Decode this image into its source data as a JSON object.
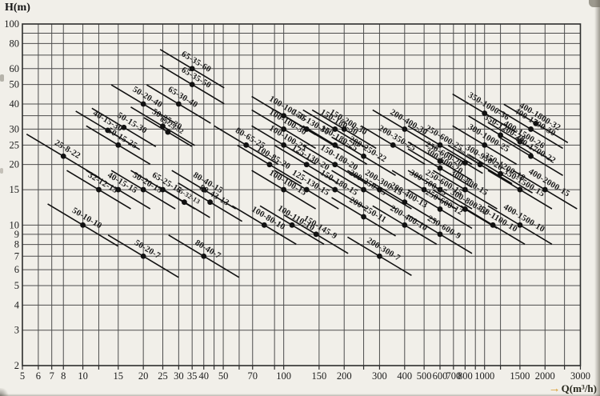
{
  "colors": {
    "background": "#f1efe9",
    "ink": "#1c1c1c",
    "grid": "#4d4d4d",
    "border": "#2d2d2d",
    "curve": "#111111",
    "arrow_accent": "#d99d33"
  },
  "chart_data": {
    "type": "scatter",
    "xlabel": "Q(m³/h)",
    "ylabel": "H(m)",
    "x_scale": "log",
    "y_scale": "log",
    "xlim": [
      5,
      3000
    ],
    "ylim": [
      2,
      100
    ],
    "grid": true,
    "legend": "none",
    "x_gridlines": [
      5,
      6,
      7,
      8,
      10,
      12,
      15,
      20,
      25,
      30,
      35,
      40,
      45,
      50,
      60,
      70,
      90,
      100,
      150,
      200,
      250,
      300,
      400,
      500,
      600,
      700,
      800,
      900,
      1000,
      1200,
      1500,
      2000,
      2500,
      3000
    ],
    "y_gridlines": [
      2,
      3,
      4,
      5,
      6,
      7,
      8,
      9,
      10,
      15,
      20,
      25,
      30,
      35,
      40,
      50,
      60,
      70,
      80,
      90,
      100
    ],
    "x_tick_labels": [
      5,
      6,
      7,
      8,
      10,
      15,
      20,
      25,
      30,
      35,
      40,
      50,
      70,
      100,
      150,
      200,
      300,
      400,
      500,
      600,
      700,
      800,
      1000,
      1500,
      2000,
      3000
    ],
    "y_tick_labels": [
      2,
      3,
      4,
      5,
      6,
      7,
      8,
      9,
      10,
      15,
      20,
      25,
      30,
      40,
      50,
      60,
      80,
      100
    ],
    "points": [
      {
        "model": "65-35-60",
        "q": 35,
        "h": 60
      },
      {
        "model": "65-35-50",
        "q": 35,
        "h": 50
      },
      {
        "model": "65-30-40",
        "q": 30,
        "h": 40
      },
      {
        "model": "50-20-40",
        "q": 20,
        "h": 40
      },
      {
        "model": "50-25-30",
        "q": 25,
        "h": 31
      },
      {
        "model": "65-25-32",
        "q": 26.5,
        "h": 29,
        "fs": 8.5,
        "len": 0.75
      },
      {
        "model": "50-15-30",
        "q": 16,
        "h": 30.6,
        "lx": 6
      },
      {
        "model": "40-15-30",
        "q": 13.3,
        "h": 29.6,
        "lx": -6
      },
      {
        "model": "50-15-25",
        "q": 15,
        "h": 25
      },
      {
        "model": "25-8-22",
        "q": 8,
        "h": 22,
        "len": 1.15
      },
      {
        "model": "32-12-15",
        "q": 12,
        "h": 15
      },
      {
        "model": "40-15-15",
        "q": 15,
        "h": 15
      },
      {
        "model": "50-20-15",
        "q": 20,
        "h": 15
      },
      {
        "model": "65-25-15",
        "q": 25,
        "h": 15
      },
      {
        "model": "80-40-15",
        "q": 40,
        "h": 15
      },
      {
        "model": "65-32-13",
        "q": 32,
        "h": 13,
        "fs": 8.5,
        "len": 0.8
      },
      {
        "model": "80-43-13",
        "q": 43,
        "h": 13
      },
      {
        "model": "50-10-10",
        "q": 10,
        "h": 10,
        "len": 1.1
      },
      {
        "model": "50-20-7",
        "q": 20,
        "h": 7,
        "len": 1.1
      },
      {
        "model": "80-40-7",
        "q": 40,
        "h": 7,
        "len": 1.1
      },
      {
        "model": "80-65-25",
        "q": 65,
        "h": 25
      },
      {
        "model": "100-100-35",
        "q": 100,
        "h": 35
      },
      {
        "model": "100-100-30",
        "q": 100,
        "h": 30
      },
      {
        "model": "100-100-25",
        "q": 100,
        "h": 25
      },
      {
        "model": "100-85-20",
        "q": 85,
        "h": 20
      },
      {
        "model": "100-100-15",
        "q": 100,
        "h": 15
      },
      {
        "model": "100-110-10",
        "q": 110,
        "h": 10
      },
      {
        "model": "100-80-10",
        "q": 80,
        "h": 10
      },
      {
        "model": "125-130-20",
        "q": 130,
        "h": 20
      },
      {
        "model": "125-130-15",
        "q": 130,
        "h": 15
      },
      {
        "model": "150-130-30",
        "q": 130,
        "h": 30
      },
      {
        "model": "150-180-30",
        "q": 180,
        "h": 30
      },
      {
        "model": "150-200-30",
        "q": 200,
        "h": 30
      },
      {
        "model": "150-180-25",
        "q": 180,
        "h": 25
      },
      {
        "model": "150-180-20",
        "q": 180,
        "h": 20
      },
      {
        "model": "150-180-15",
        "q": 180,
        "h": 15
      },
      {
        "model": "150-145-9",
        "q": 145,
        "h": 9
      },
      {
        "model": "200-250-22",
        "q": 250,
        "h": 22
      },
      {
        "model": "200-250-15",
        "q": 250,
        "h": 15
      },
      {
        "model": "200-300-15",
        "q": 300,
        "h": 15
      },
      {
        "model": "200-250-11",
        "q": 250,
        "h": 11
      },
      {
        "model": "200-300-7",
        "q": 300,
        "h": 7
      },
      {
        "model": "200-400-30",
        "q": 400,
        "h": 30
      },
      {
        "model": "200-350-25",
        "q": 350,
        "h": 25
      },
      {
        "model": "200-400-13",
        "q": 400,
        "h": 13
      },
      {
        "model": "200-400-10",
        "q": 400,
        "h": 10
      },
      {
        "model": "250-600-25",
        "q": 600,
        "h": 25
      },
      {
        "model": "250-600-20",
        "q": 600,
        "h": 20.8
      },
      {
        "model": "300-600-20",
        "q": 600,
        "h": 19.2
      },
      {
        "model": "300-950-20",
        "q": 950,
        "h": 20
      },
      {
        "model": "300-800-20",
        "q": 800,
        "h": 20.4,
        "fs": 7,
        "len": 0.55
      },
      {
        "model": "250-600-15",
        "q": 600,
        "h": 15
      },
      {
        "model": "300-500-15",
        "q": 500,
        "h": 15
      },
      {
        "model": "300-800-15",
        "q": 800,
        "h": 15
      },
      {
        "model": "250-600-12",
        "q": 600,
        "h": 12
      },
      {
        "model": "300-800-12",
        "q": 800,
        "h": 12
      },
      {
        "model": "250-600-9",
        "q": 600,
        "h": 9
      },
      {
        "model": "300-1000-25",
        "q": 1000,
        "h": 25
      },
      {
        "model": "350-1200-28",
        "q": 1200,
        "h": 28
      },
      {
        "model": "350-1000-36",
        "q": 1000,
        "h": 36
      },
      {
        "model": "400-1800-32",
        "q": 1800,
        "h": 32
      },
      {
        "model": "400-1700-30",
        "q": 1700,
        "h": 30
      },
      {
        "model": "400-1500-26",
        "q": 1500,
        "h": 26
      },
      {
        "model": "400-1700-22",
        "q": 1700,
        "h": 22
      },
      {
        "model": "350-1200-18",
        "q": 1200,
        "h": 18
      },
      {
        "model": "400-2000-15",
        "q": 2000,
        "h": 15
      },
      {
        "model": "350-1500-15",
        "q": 1500,
        "h": 15
      },
      {
        "model": "400-1500-10",
        "q": 1500,
        "h": 10
      },
      {
        "model": "350-1100-10",
        "q": 1100,
        "h": 10
      }
    ]
  }
}
